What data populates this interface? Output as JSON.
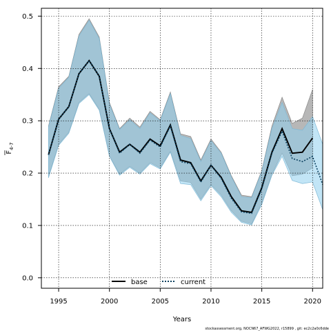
{
  "chart_data": {
    "type": "line",
    "xlabel": "Years",
    "ylabel_main": "F",
    "ylabel_sub": "4-7",
    "xlim": [
      1993.3,
      2021
    ],
    "ylim": [
      -0.02,
      0.515
    ],
    "x_ticks": [
      "1995",
      "2000",
      "2005",
      "2010",
      "2015",
      "2020"
    ],
    "y_ticks": [
      "0.0",
      "0.1",
      "0.2",
      "0.3",
      "0.4",
      "0.5"
    ],
    "grid": true,
    "legend_position": "bottom-center",
    "series": [
      {
        "name": "base",
        "color": "#000000",
        "line_style": "solid",
        "band_color": "#aaaaaa",
        "x": [
          1994,
          1995,
          1996,
          1997,
          1998,
          1999,
          2000,
          2001,
          2002,
          2003,
          2004,
          2005,
          2006,
          2007,
          2008,
          2009,
          2010,
          2011,
          2012,
          2013,
          2014,
          2015,
          2016,
          2017,
          2018,
          2019,
          2020
        ],
        "values": [
          0.235,
          0.303,
          0.327,
          0.39,
          0.415,
          0.385,
          0.285,
          0.24,
          0.255,
          0.24,
          0.265,
          0.252,
          0.292,
          0.225,
          0.22,
          0.185,
          0.215,
          0.192,
          0.155,
          0.128,
          0.125,
          0.172,
          0.24,
          0.285,
          0.238,
          0.24,
          0.267
        ],
        "upper": [
          0.29,
          0.365,
          0.385,
          0.465,
          0.495,
          0.46,
          0.335,
          0.285,
          0.305,
          0.288,
          0.318,
          0.302,
          0.355,
          0.275,
          0.27,
          0.225,
          0.265,
          0.24,
          0.195,
          0.158,
          0.155,
          0.205,
          0.29,
          0.345,
          0.295,
          0.305,
          0.36
        ],
        "lower": [
          0.193,
          0.255,
          0.278,
          0.335,
          0.352,
          0.322,
          0.233,
          0.198,
          0.213,
          0.2,
          0.22,
          0.21,
          0.242,
          0.185,
          0.182,
          0.15,
          0.178,
          0.158,
          0.128,
          0.108,
          0.103,
          0.143,
          0.198,
          0.238,
          0.195,
          0.198,
          0.21
        ]
      },
      {
        "name": "current",
        "color": "#0a3f5e",
        "line_style": "dotted",
        "band_color": "#8fcfee",
        "x": [
          1994,
          1995,
          1996,
          1997,
          1998,
          1999,
          2000,
          2001,
          2002,
          2003,
          2004,
          2005,
          2006,
          2007,
          2008,
          2009,
          2010,
          2011,
          2012,
          2013,
          2014,
          2015,
          2016,
          2017,
          2018,
          2019,
          2020,
          2021
        ],
        "values": [
          0.235,
          0.303,
          0.327,
          0.39,
          0.415,
          0.385,
          0.285,
          0.238,
          0.255,
          0.238,
          0.263,
          0.25,
          0.29,
          0.222,
          0.218,
          0.183,
          0.215,
          0.19,
          0.152,
          0.126,
          0.123,
          0.17,
          0.238,
          0.28,
          0.228,
          0.222,
          0.232,
          0.178
        ],
        "upper": [
          0.288,
          0.362,
          0.383,
          0.462,
          0.492,
          0.457,
          0.332,
          0.283,
          0.302,
          0.285,
          0.315,
          0.3,
          0.352,
          0.272,
          0.266,
          0.222,
          0.262,
          0.238,
          0.193,
          0.155,
          0.153,
          0.203,
          0.285,
          0.335,
          0.285,
          0.282,
          0.308,
          0.255
        ],
        "lower": [
          0.191,
          0.253,
          0.276,
          0.333,
          0.35,
          0.32,
          0.232,
          0.196,
          0.211,
          0.198,
          0.218,
          0.208,
          0.24,
          0.18,
          0.178,
          0.147,
          0.176,
          0.155,
          0.125,
          0.106,
          0.101,
          0.14,
          0.196,
          0.232,
          0.186,
          0.18,
          0.183,
          0.13
        ]
      }
    ]
  },
  "footer_text": "stockassessment.org, NOCN67_AFWG2022, r15899 , git: ec2c2a0c6dde"
}
